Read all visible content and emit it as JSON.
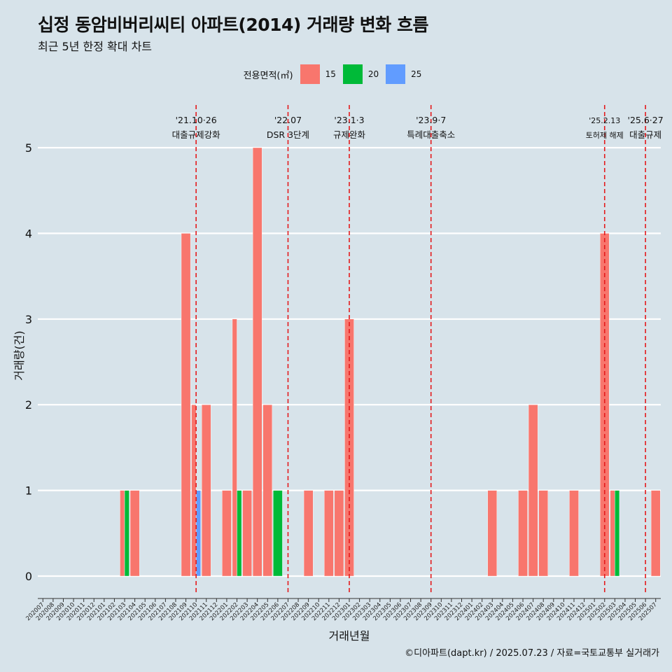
{
  "title": "십정 동암비버리씨티 아파트(2014) 거래량 변화 흐름",
  "subtitle": "최근 5년 한정 확대 차트",
  "caption": "©디아파트(dapt.kr) / 2025.07.23 / 자료=국토교통부 실거래가",
  "legend": {
    "title": "전용면적(㎡)",
    "items": [
      {
        "label": "15",
        "color": "#f8766d"
      },
      {
        "label": "20",
        "color": "#00ba38"
      },
      {
        "label": "25",
        "color": "#619cff"
      }
    ]
  },
  "chart_data": {
    "type": "bar",
    "xlabel": "거래년월",
    "ylabel": "거래량(건)",
    "ylim": [
      0,
      5
    ],
    "yticks": [
      0,
      1,
      2,
      3,
      4,
      5
    ],
    "grid": true,
    "legend_position": "top",
    "categories": [
      "202007",
      "202008",
      "202009",
      "202010",
      "202011",
      "202012",
      "202101",
      "202102",
      "202103",
      "202104",
      "202105",
      "202106",
      "202107",
      "202108",
      "202109",
      "202110",
      "202111",
      "202112",
      "202201",
      "202202",
      "202203",
      "202204",
      "202205",
      "202206",
      "202207",
      "202208",
      "202209",
      "202210",
      "202211",
      "202212",
      "202301",
      "202302",
      "202303",
      "202304",
      "202305",
      "202306",
      "202307",
      "202308",
      "202309",
      "202310",
      "202311",
      "202312",
      "202401",
      "202402",
      "202403",
      "202404",
      "202405",
      "202406",
      "202407",
      "202408",
      "202409",
      "202410",
      "202411",
      "202412",
      "202501",
      "202502",
      "202503",
      "202504",
      "202505",
      "202506",
      "202507"
    ],
    "series": [
      {
        "name": "15",
        "color": "#f8766d",
        "values": [
          0,
          0,
          0,
          0,
          0,
          0,
          0,
          0,
          1,
          1,
          0,
          0,
          0,
          0,
          4,
          2,
          2,
          0,
          1,
          3,
          1,
          5,
          2,
          0,
          0,
          0,
          1,
          0,
          1,
          1,
          3,
          0,
          0,
          0,
          0,
          0,
          0,
          0,
          0,
          0,
          0,
          0,
          0,
          0,
          1,
          0,
          0,
          1,
          2,
          1,
          0,
          0,
          1,
          0,
          0,
          4,
          1,
          0,
          0,
          0,
          1
        ]
      },
      {
        "name": "20",
        "color": "#00ba38",
        "values": [
          0,
          0,
          0,
          0,
          0,
          0,
          0,
          0,
          1,
          0,
          0,
          0,
          0,
          0,
          0,
          0,
          0,
          0,
          0,
          1,
          0,
          0,
          0,
          1,
          0,
          0,
          0,
          0,
          0,
          0,
          0,
          0,
          0,
          0,
          0,
          0,
          0,
          0,
          0,
          0,
          0,
          0,
          0,
          0,
          0,
          0,
          0,
          0,
          0,
          0,
          0,
          0,
          0,
          0,
          0,
          0,
          1,
          0,
          0,
          0,
          0
        ]
      },
      {
        "name": "25",
        "color": "#619cff",
        "values": [
          0,
          0,
          0,
          0,
          0,
          0,
          0,
          0,
          0,
          0,
          0,
          0,
          0,
          0,
          0,
          1,
          0,
          0,
          0,
          0,
          0,
          0,
          0,
          0,
          0,
          0,
          0,
          0,
          0,
          0,
          0,
          0,
          0,
          0,
          0,
          0,
          0,
          0,
          0,
          0,
          0,
          0,
          0,
          0,
          0,
          0,
          0,
          0,
          0,
          0,
          0,
          0,
          0,
          0,
          0,
          0,
          0,
          0,
          0,
          0,
          0
        ]
      }
    ],
    "annotations": [
      {
        "date": "'21.10·26",
        "label": "대출규제강화",
        "category": "202110",
        "size": "normal"
      },
      {
        "date": "'22.07",
        "label": "DSR 3단계",
        "category": "202207",
        "size": "normal"
      },
      {
        "date": "'23.1·3",
        "label": "규제완화",
        "category": "202301",
        "size": "normal"
      },
      {
        "date": "'23.9·7",
        "label": "특례대출축소",
        "category": "202309",
        "size": "normal"
      },
      {
        "date": "'25.2.13",
        "label": "토허제 해제",
        "category": "202502",
        "size": "small"
      },
      {
        "date": "'25.6·27",
        "label": "대출규제",
        "category": "202506",
        "size": "normal"
      }
    ],
    "annotation_line_color": "#e41a1c"
  }
}
